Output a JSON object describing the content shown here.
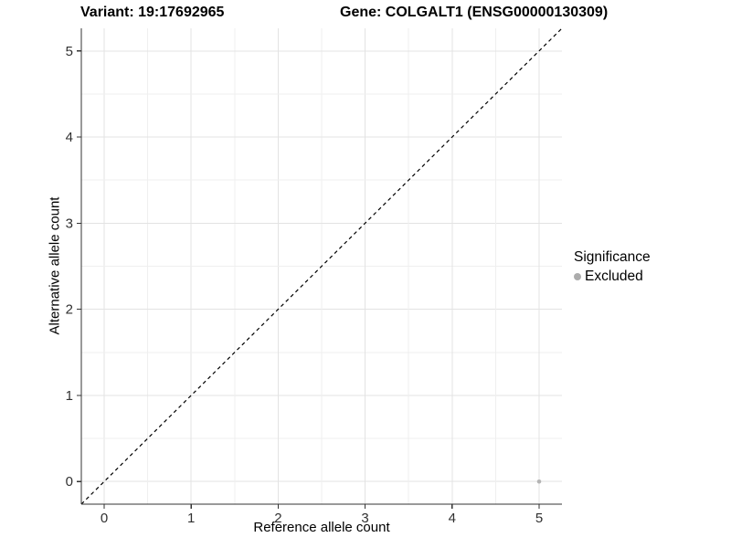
{
  "header": {
    "variant_title": "Variant: 19:17692965",
    "gene_title": "Gene: COLGALT1 (ENSG00000130309)"
  },
  "chart_data": {
    "type": "scatter",
    "xlabel": "Reference allele count",
    "ylabel": "Alternative allele count",
    "xlim": [
      -0.2625,
      5.2625
    ],
    "ylim": [
      -0.2625,
      5.2625
    ],
    "x_ticks": [
      0,
      1,
      2,
      3,
      4,
      5
    ],
    "y_ticks": [
      0,
      1,
      2,
      3,
      4,
      5
    ],
    "minor_step": 0.5,
    "grid": true,
    "reference_line": {
      "type": "identity",
      "x1": -0.2625,
      "y1": -0.2625,
      "x2": 5.2625,
      "y2": 5.2625,
      "style": "dashed",
      "color": "#000000"
    },
    "series": [
      {
        "name": "Excluded",
        "color": "#b4b4b4",
        "points": [
          {
            "x": 5,
            "y": 0
          }
        ]
      }
    ],
    "legend": {
      "title": "Significance",
      "position": "right",
      "entries": [
        {
          "label": "Excluded",
          "color": "#acacac"
        }
      ]
    },
    "colors": {
      "axis_line": "#333333",
      "tick": "#333333",
      "tick_label": "#303030",
      "grid_major": "#e3e3e3",
      "grid_minor": "#efefef",
      "panel_background": "#ffffff"
    }
  }
}
